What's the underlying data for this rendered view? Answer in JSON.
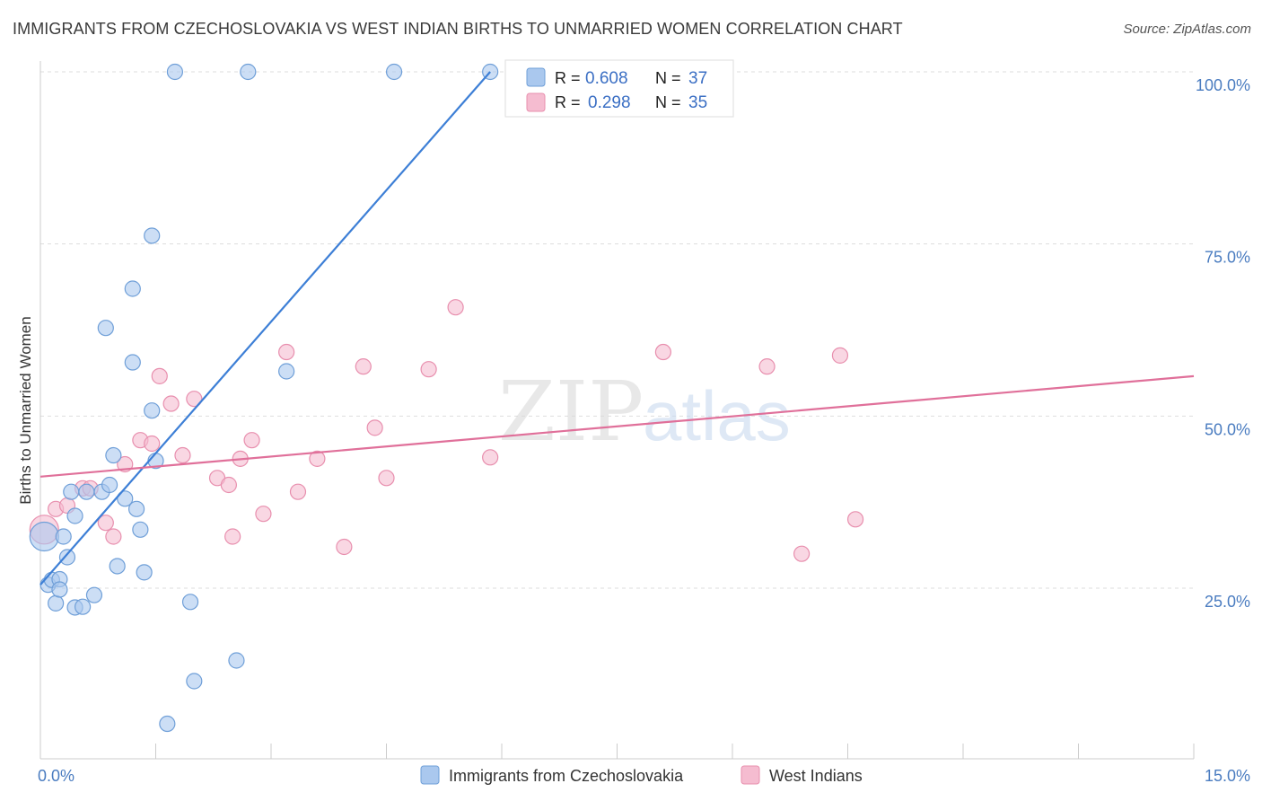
{
  "header": {
    "title": "IMMIGRANTS FROM CZECHOSLOVAKIA VS WEST INDIAN BIRTHS TO UNMARRIED WOMEN CORRELATION CHART",
    "source": "Source: ZipAtlas.com"
  },
  "watermark": {
    "zip": "ZIP",
    "atlas": "atlas"
  },
  "colors": {
    "blue_fill": "#aac8ee",
    "blue_stroke": "#6f9fd8",
    "blue_line": "#3d7fd6",
    "pink_fill": "#f5bcd0",
    "pink_stroke": "#e88fae",
    "pink_line": "#e0709a",
    "grid": "#dddddd",
    "tick_text": "#4a7cc0"
  },
  "chart_data": {
    "type": "scatter",
    "title": "IMMIGRANTS FROM CZECHOSLOVAKIA VS WEST INDIAN BIRTHS TO UNMARRIED WOMEN CORRELATION CHART",
    "xlabel": "",
    "ylabel": "Births to Unmarried Women",
    "xlim": [
      0,
      15
    ],
    "ylim": [
      0,
      102
    ],
    "x_tick_labels": [
      {
        "value": 0,
        "label": "0.0%"
      },
      {
        "value": 15,
        "label": "15.0%"
      }
    ],
    "y_tick_labels": [
      {
        "value": 25,
        "label": "25.0%"
      },
      {
        "value": 50,
        "label": "50.0%"
      },
      {
        "value": 75,
        "label": "75.0%"
      },
      {
        "value": 100,
        "label": "100.0%"
      }
    ],
    "legend_position": "top-center",
    "legend": [
      {
        "r_label": "R =",
        "r_value": "0.608",
        "n_label": "N =",
        "n_value": "37"
      },
      {
        "r_label": "R =",
        "r_value": "0.298",
        "n_label": "N =",
        "n_value": "35"
      }
    ],
    "series": [
      {
        "name": "Immigrants from Czechoslovakia",
        "color": "blue",
        "trendline": {
          "x0": 0.0,
          "y0": 25.5,
          "x1": 5.85,
          "y1": 100.0
        },
        "points": [
          {
            "x": 0.05,
            "y": 32.5,
            "size": "large"
          },
          {
            "x": 0.1,
            "y": 25.5
          },
          {
            "x": 0.15,
            "y": 26.2
          },
          {
            "x": 0.2,
            "y": 22.8
          },
          {
            "x": 0.25,
            "y": 26.3
          },
          {
            "x": 0.3,
            "y": 32.5
          },
          {
            "x": 0.35,
            "y": 29.5
          },
          {
            "x": 0.45,
            "y": 22.2
          },
          {
            "x": 0.55,
            "y": 22.3
          },
          {
            "x": 0.45,
            "y": 35.5
          },
          {
            "x": 0.4,
            "y": 39.0
          },
          {
            "x": 0.7,
            "y": 24.0
          },
          {
            "x": 0.8,
            "y": 39.0
          },
          {
            "x": 0.9,
            "y": 40.0
          },
          {
            "x": 0.95,
            "y": 44.3
          },
          {
            "x": 1.0,
            "y": 28.2
          },
          {
            "x": 1.1,
            "y": 38.0
          },
          {
            "x": 1.25,
            "y": 36.5
          },
          {
            "x": 1.3,
            "y": 33.5
          },
          {
            "x": 1.35,
            "y": 27.3
          },
          {
            "x": 1.5,
            "y": 43.5
          },
          {
            "x": 1.45,
            "y": 50.8
          },
          {
            "x": 1.2,
            "y": 57.8
          },
          {
            "x": 0.85,
            "y": 62.8
          },
          {
            "x": 1.2,
            "y": 68.5
          },
          {
            "x": 1.45,
            "y": 76.2
          },
          {
            "x": 1.95,
            "y": 23.0
          },
          {
            "x": 2.0,
            "y": 11.5
          },
          {
            "x": 1.65,
            "y": 5.3
          },
          {
            "x": 2.55,
            "y": 14.5
          },
          {
            "x": 1.75,
            "y": 100.0
          },
          {
            "x": 2.7,
            "y": 100.0
          },
          {
            "x": 3.2,
            "y": 56.5
          },
          {
            "x": 4.6,
            "y": 100.0
          },
          {
            "x": 5.85,
            "y": 100.0
          },
          {
            "x": 0.6,
            "y": 39.0
          },
          {
            "x": 0.25,
            "y": 24.8
          }
        ]
      },
      {
        "name": "West Indians",
        "color": "pink",
        "trendline": {
          "x0": 0.0,
          "y0": 41.2,
          "x1": 15.0,
          "y1": 55.8
        },
        "points": [
          {
            "x": 0.05,
            "y": 33.5,
            "size": "large"
          },
          {
            "x": 0.2,
            "y": 36.5
          },
          {
            "x": 0.35,
            "y": 37.0
          },
          {
            "x": 0.55,
            "y": 39.5
          },
          {
            "x": 0.65,
            "y": 39.5
          },
          {
            "x": 0.85,
            "y": 34.5
          },
          {
            "x": 0.95,
            "y": 32.5
          },
          {
            "x": 1.1,
            "y": 43.0
          },
          {
            "x": 1.3,
            "y": 46.5
          },
          {
            "x": 1.45,
            "y": 46.0
          },
          {
            "x": 1.55,
            "y": 55.8
          },
          {
            "x": 1.7,
            "y": 51.8
          },
          {
            "x": 1.85,
            "y": 44.3
          },
          {
            "x": 2.0,
            "y": 52.5
          },
          {
            "x": 2.3,
            "y": 41.0
          },
          {
            "x": 2.45,
            "y": 40.0
          },
          {
            "x": 2.5,
            "y": 32.5
          },
          {
            "x": 2.6,
            "y": 43.8
          },
          {
            "x": 2.75,
            "y": 46.5
          },
          {
            "x": 2.9,
            "y": 35.8
          },
          {
            "x": 3.2,
            "y": 59.3
          },
          {
            "x": 3.35,
            "y": 39.0
          },
          {
            "x": 3.6,
            "y": 43.8
          },
          {
            "x": 3.95,
            "y": 31.0
          },
          {
            "x": 4.2,
            "y": 57.2
          },
          {
            "x": 4.35,
            "y": 48.3
          },
          {
            "x": 4.5,
            "y": 41.0
          },
          {
            "x": 5.05,
            "y": 56.8
          },
          {
            "x": 5.4,
            "y": 65.8
          },
          {
            "x": 5.85,
            "y": 44.0
          },
          {
            "x": 8.1,
            "y": 59.3
          },
          {
            "x": 9.45,
            "y": 57.2
          },
          {
            "x": 9.9,
            "y": 30.0
          },
          {
            "x": 10.4,
            "y": 58.8
          },
          {
            "x": 10.6,
            "y": 35.0
          }
        ]
      }
    ]
  }
}
